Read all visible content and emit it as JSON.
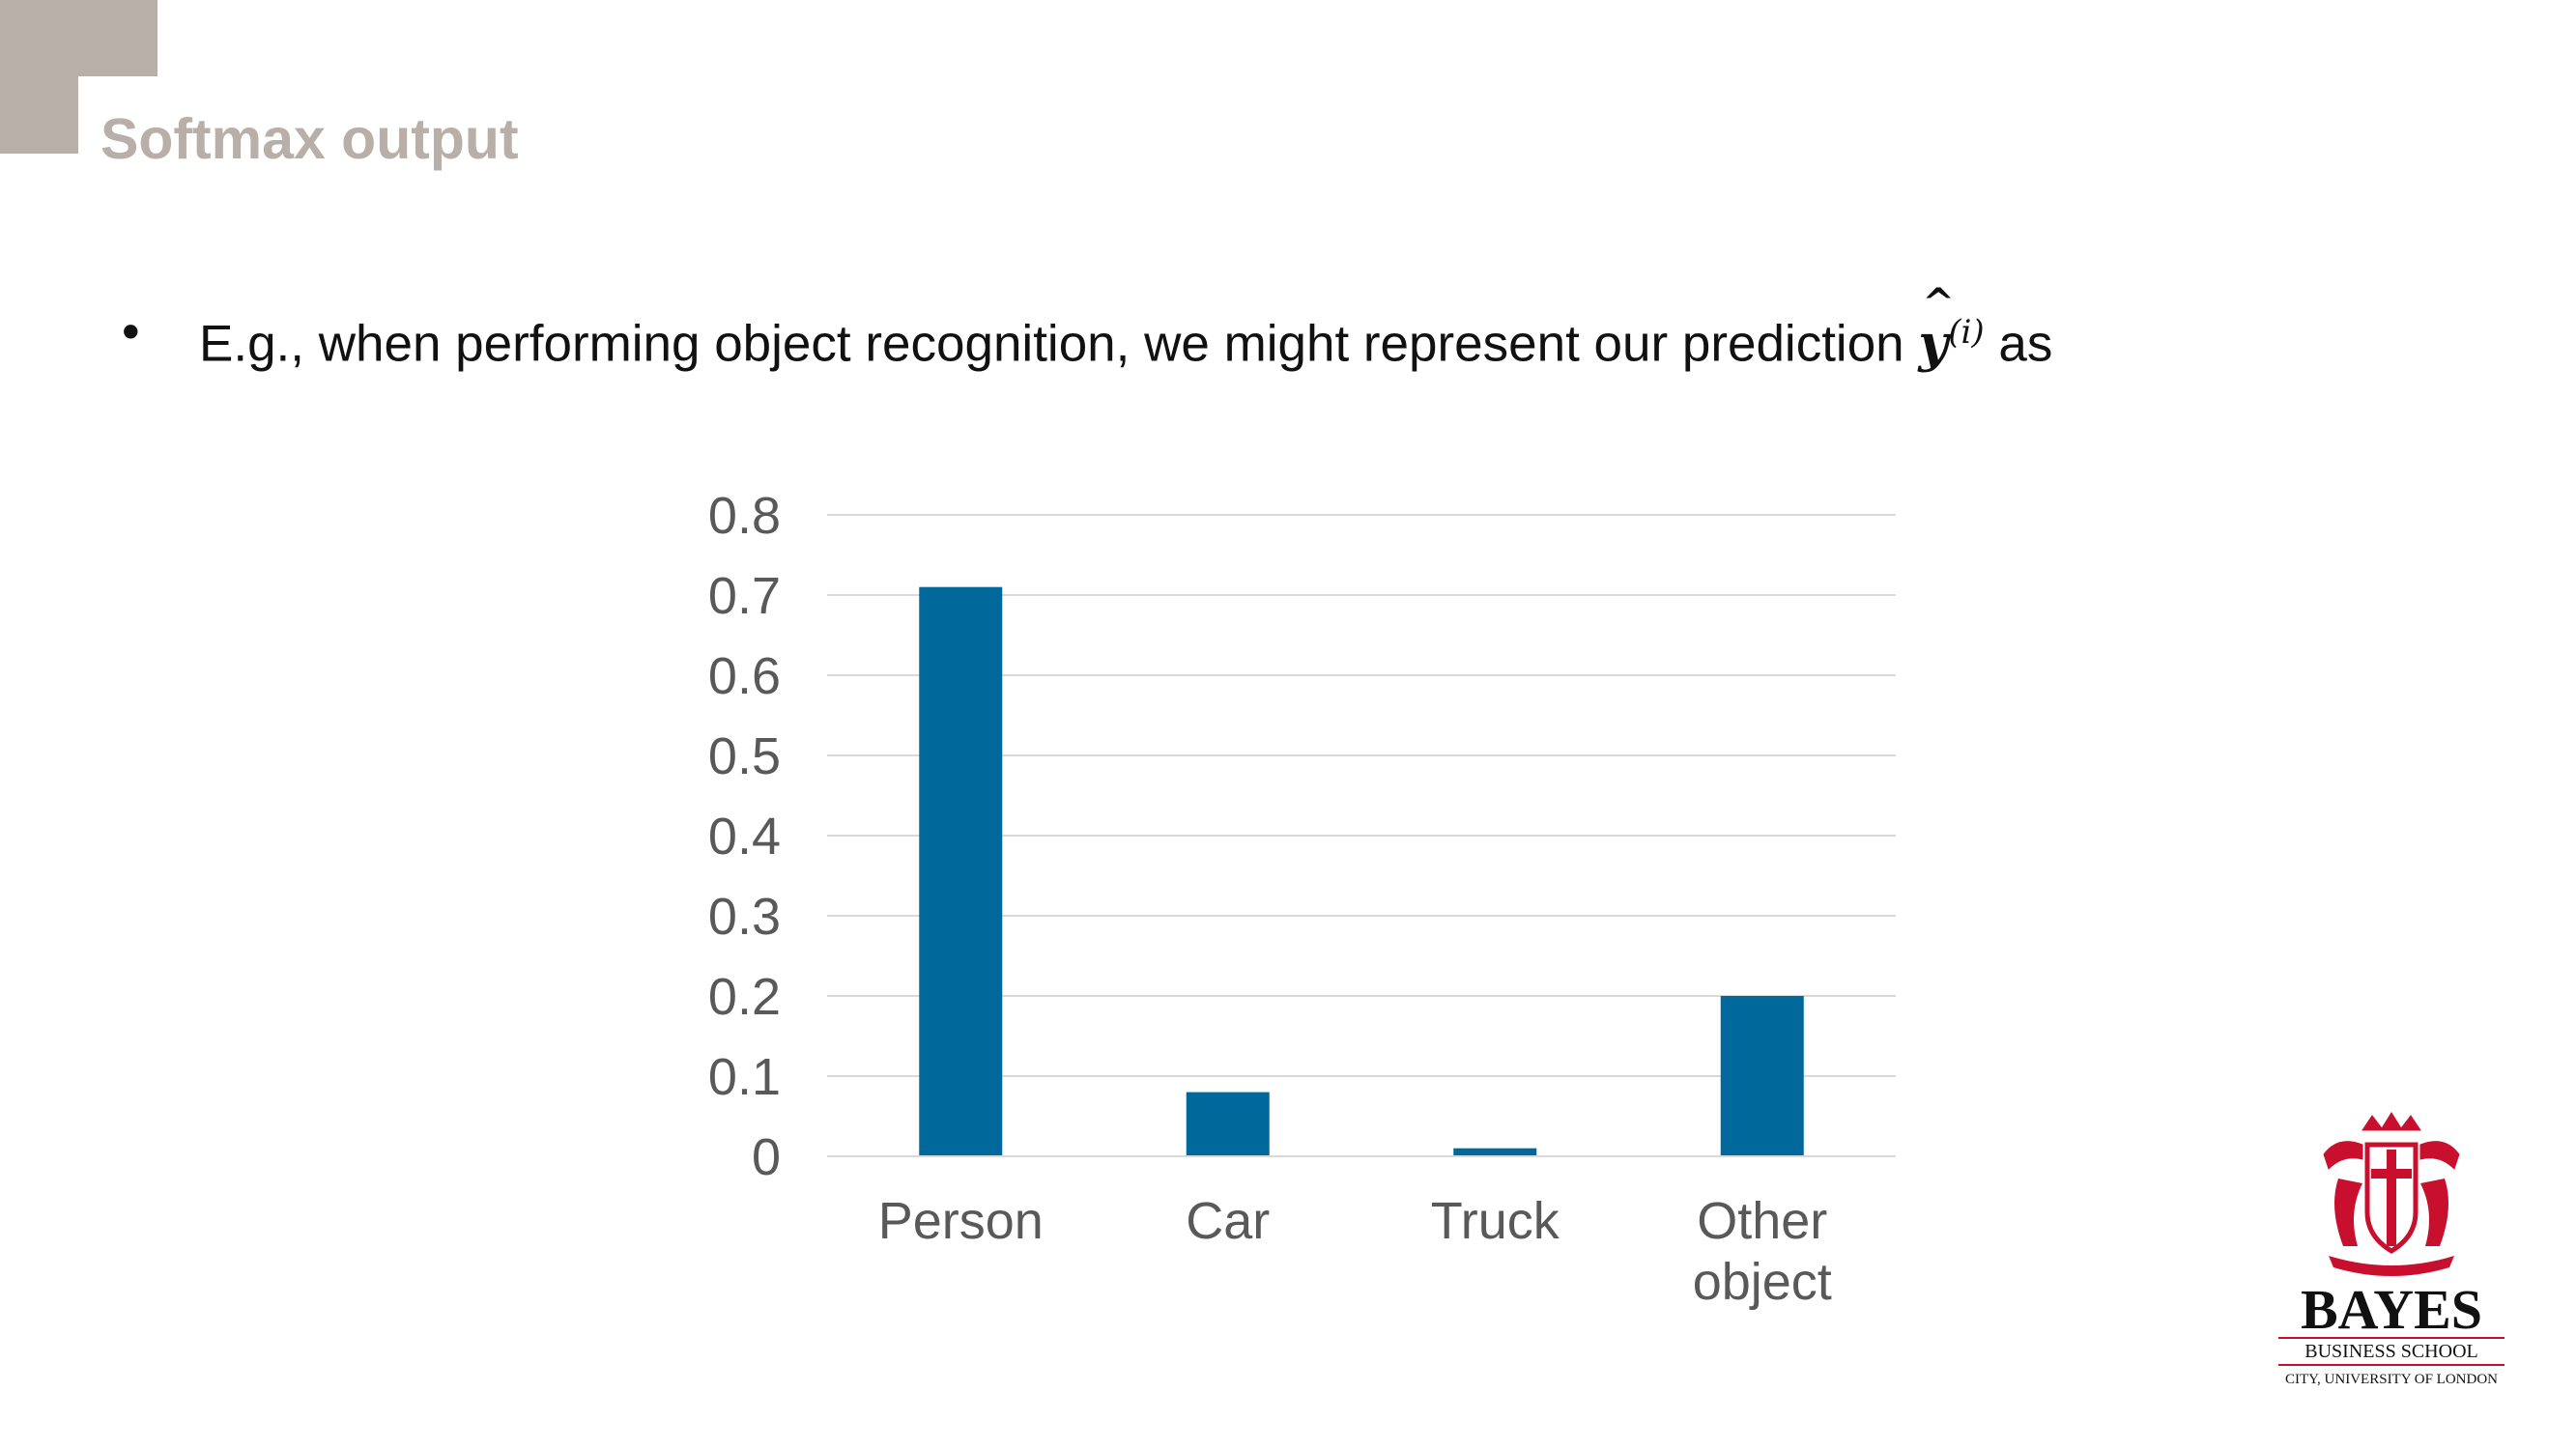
{
  "slide": {
    "title": "Softmax output",
    "bullet_symbol": "•",
    "bullet_text_before": "E.g., when performing object recognition, we might represent our prediction",
    "math_symbol": "y",
    "math_superscript": "(i)",
    "bullet_text_after": "as"
  },
  "logo": {
    "name": "BAYES",
    "line2": "BUSINESS SCHOOL",
    "line3": "CITY, UNIVERSITY OF LONDON",
    "color": "#c8102e"
  },
  "chart_data": {
    "type": "bar",
    "categories": [
      "Person",
      "Car",
      "Truck",
      "Other object"
    ],
    "values": [
      0.71,
      0.08,
      0.01,
      0.2
    ],
    "ylim": [
      0,
      0.8
    ],
    "yticks": [
      "0",
      "0.1",
      "0.2",
      "0.3",
      "0.4",
      "0.5",
      "0.6",
      "0.7",
      "0.8"
    ],
    "grid": true,
    "bar_color": "#00689a",
    "title": "",
    "xlabel": "",
    "ylabel": ""
  }
}
